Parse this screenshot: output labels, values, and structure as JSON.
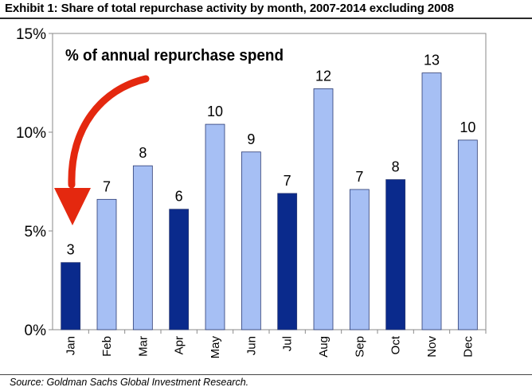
{
  "chart_data": {
    "type": "bar",
    "title": "Exhibit 1: Share of total repurchase activity by month, 2007-2014 excluding 2008",
    "annotation": "% of annual repurchase spend",
    "categories": [
      "Jan",
      "Feb",
      "Mar",
      "Apr",
      "May",
      "Jun",
      "Jul",
      "Aug",
      "Sep",
      "Oct",
      "Nov",
      "Dec"
    ],
    "values": [
      3.4,
      6.6,
      8.3,
      6.1,
      10.4,
      9.0,
      6.9,
      12.2,
      7.1,
      7.6,
      13.0,
      9.6
    ],
    "data_labels": [
      "3",
      "7",
      "8",
      "6",
      "10",
      "9",
      "7",
      "12",
      "7",
      "8",
      "13",
      "10"
    ],
    "highlight": [
      true,
      false,
      false,
      true,
      false,
      false,
      true,
      false,
      false,
      true,
      false,
      false
    ],
    "ylim": [
      0,
      15
    ],
    "yticks": [
      0,
      5,
      10,
      15
    ],
    "ytick_labels": [
      "0%",
      "5%",
      "10%",
      "15%"
    ],
    "xlabel": "",
    "ylabel": "",
    "legend": "none",
    "grid": false,
    "source": "Source: Goldman Sachs Global Investment Research."
  },
  "colors": {
    "bar_light": "#a6bff4",
    "bar_dark": "#0a2a8c",
    "bar_edge": "#2b3a73",
    "arrow": "#e4280f"
  }
}
